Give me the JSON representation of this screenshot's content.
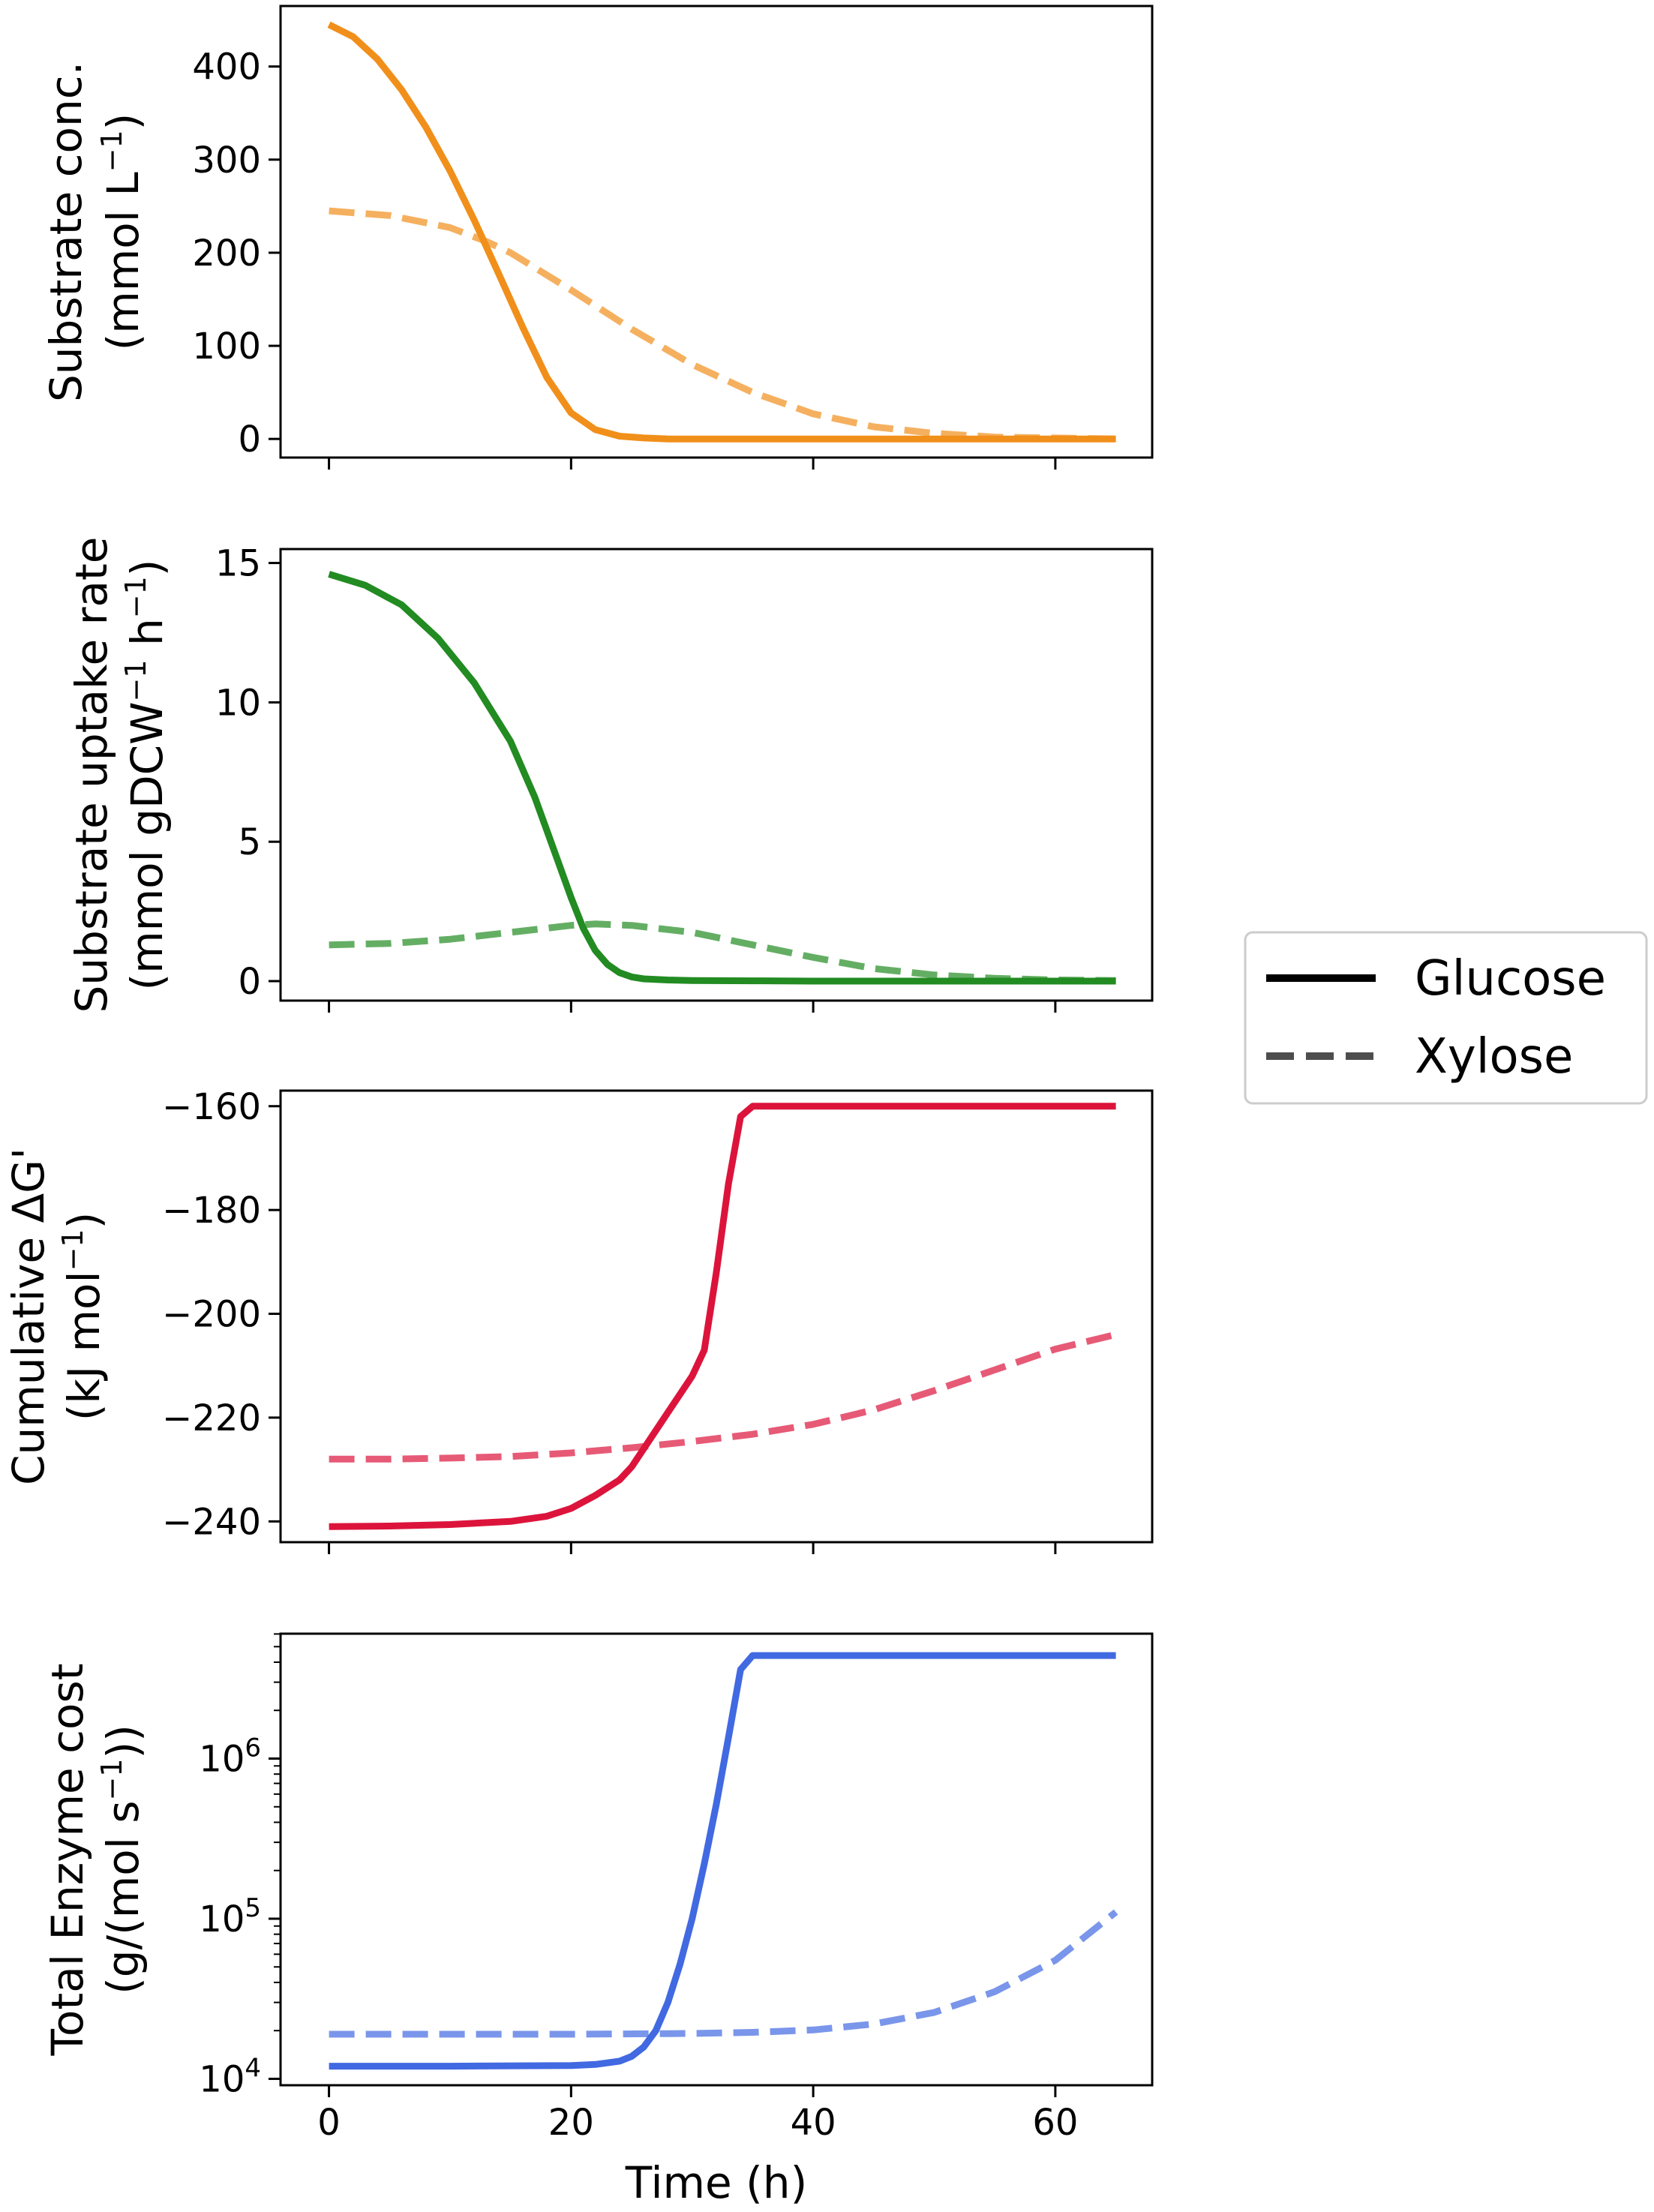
{
  "figure": {
    "x_label": "Time (h)",
    "legend": {
      "placement": "right-center",
      "entries": [
        {
          "label": "Glucose",
          "style": "solid",
          "color": "#000000"
        },
        {
          "label": "Xylose",
          "style": "dashed",
          "color": "#4d4d4d"
        }
      ]
    }
  },
  "chart_data": [
    {
      "type": "line",
      "ylabel_line1": "Substrate conc.",
      "ylabel_line2_main": "(mmol L",
      "ylabel_line2_sup": "−1",
      "ylabel_line2_end": ")",
      "xlim": [
        -4,
        68
      ],
      "ylim": [
        -20,
        465
      ],
      "yscale": "linear",
      "x_ticks": [
        0,
        20,
        40,
        60
      ],
      "y_ticks": [
        0,
        100,
        200,
        300,
        400
      ],
      "color": "#f18f1b",
      "series": [
        {
          "name": "Glucose",
          "style": "solid",
          "x": [
            0,
            2,
            4,
            6,
            8,
            10,
            12,
            14,
            16,
            18,
            20,
            22,
            24,
            26,
            28,
            30,
            35,
            40,
            45,
            50,
            55,
            60,
            65
          ],
          "y": [
            445,
            432,
            408,
            375,
            335,
            288,
            235,
            178,
            120,
            66,
            28,
            10,
            3,
            1,
            0,
            0,
            0,
            0,
            0,
            0,
            0,
            0,
            0
          ]
        },
        {
          "name": "Xylose",
          "style": "dashed",
          "x": [
            0,
            5,
            10,
            13,
            15,
            20,
            25,
            30,
            35,
            40,
            45,
            50,
            55,
            60,
            65
          ],
          "y": [
            245,
            240,
            227,
            212,
            200,
            160,
            118,
            80,
            50,
            27,
            13,
            6,
            2,
            1,
            0
          ]
        }
      ]
    },
    {
      "type": "line",
      "ylabel_line1": "Substrate uptake rate",
      "ylabel_line2_main": "(mmol gDCW",
      "ylabel_line2_sup": "−1",
      "ylabel_line2_mid": " h",
      "ylabel_line2_sup2": "−1",
      "ylabel_line2_end": ")",
      "xlim": [
        -4,
        68
      ],
      "ylim": [
        -0.7,
        15.5
      ],
      "yscale": "linear",
      "x_ticks": [
        0,
        20,
        40,
        60
      ],
      "y_ticks": [
        0,
        5,
        10,
        15
      ],
      "color": "#228b22",
      "series": [
        {
          "name": "Glucose",
          "style": "solid",
          "x": [
            0,
            3,
            6,
            9,
            12,
            15,
            17,
            18,
            19,
            20,
            21,
            22,
            23,
            24,
            25,
            26,
            28,
            30,
            35,
            40,
            45,
            50,
            55,
            60,
            65
          ],
          "y": [
            14.6,
            14.2,
            13.5,
            12.3,
            10.7,
            8.6,
            6.6,
            5.4,
            4.2,
            3.0,
            1.9,
            1.1,
            0.6,
            0.3,
            0.15,
            0.08,
            0.04,
            0.02,
            0.01,
            0,
            0,
            0,
            0,
            0,
            0
          ]
        },
        {
          "name": "Xylose",
          "style": "dashed",
          "x": [
            0,
            5,
            10,
            15,
            20,
            22,
            25,
            30,
            35,
            40,
            45,
            50,
            55,
            60,
            65
          ],
          "y": [
            1.3,
            1.35,
            1.5,
            1.75,
            2.0,
            2.05,
            2.0,
            1.75,
            1.3,
            0.85,
            0.45,
            0.22,
            0.1,
            0.04,
            0.02
          ]
        }
      ]
    },
    {
      "type": "line",
      "ylabel_line1": "Cumulative ΔG'",
      "ylabel_line2_main": "(kJ mol",
      "ylabel_line2_sup": "−1",
      "ylabel_line2_end": ")",
      "xlim": [
        -4,
        68
      ],
      "ylim": [
        -244,
        -157
      ],
      "yscale": "linear",
      "x_ticks": [
        0,
        20,
        40,
        60
      ],
      "y_ticks": [
        -160,
        -180,
        -200,
        -220,
        -240
      ],
      "y_tick_labels": [
        "−160",
        "−180",
        "−200",
        "−220",
        "−240"
      ],
      "color": "#dc143c",
      "series": [
        {
          "name": "Glucose",
          "style": "solid",
          "x": [
            0,
            5,
            10,
            15,
            18,
            20,
            22,
            24,
            25,
            26,
            28,
            30,
            31,
            32,
            33,
            34,
            35,
            40,
            45,
            50,
            55,
            60,
            65
          ],
          "y": [
            -241,
            -240.9,
            -240.6,
            -240,
            -239,
            -237.5,
            -235,
            -232,
            -229.5,
            -226,
            -219,
            -212,
            -207,
            -192,
            -175,
            -162,
            -160,
            -160,
            -160,
            -160,
            -160,
            -160,
            -160
          ]
        },
        {
          "name": "Xylose",
          "style": "dashed",
          "x": [
            0,
            5,
            10,
            15,
            20,
            25,
            30,
            35,
            40,
            45,
            50,
            55,
            60,
            65
          ],
          "y": [
            -228,
            -228,
            -227.8,
            -227.5,
            -226.8,
            -225.8,
            -224.6,
            -223.2,
            -221.3,
            -218.5,
            -214.8,
            -210.8,
            -206.8,
            -204
          ]
        }
      ]
    },
    {
      "type": "line",
      "ylabel_line1": "Total Enzyme cost",
      "ylabel_line2_main": "(g/(mol s",
      "ylabel_line2_sup": "−1",
      "ylabel_line2_end": "))",
      "xlim": [
        -4,
        68
      ],
      "ylim_log10": [
        3.96,
        6.78
      ],
      "yscale": "log",
      "x_ticks": [
        0,
        20,
        40,
        60
      ],
      "y_ticks_log10": [
        4,
        5,
        6
      ],
      "y_tick_base": "10",
      "y_tick_exponents": [
        "4",
        "5",
        "6"
      ],
      "color": "#4169e1",
      "series": [
        {
          "name": "Glucose",
          "style": "solid",
          "x": [
            0,
            10,
            20,
            22,
            24,
            25,
            26,
            27,
            28,
            29,
            30,
            31,
            32,
            33,
            34,
            35,
            40,
            45,
            50,
            55,
            60,
            65
          ],
          "y": [
            12000,
            12000,
            12100,
            12300,
            12900,
            13800,
            15800,
            20000,
            30000,
            52000,
            100000,
            220000,
            520000,
            1350000,
            3600000,
            4400000,
            4400000,
            4400000,
            4400000,
            4400000,
            4400000,
            4400000
          ]
        },
        {
          "name": "Xylose",
          "style": "dashed",
          "x": [
            0,
            10,
            20,
            30,
            35,
            40,
            45,
            50,
            55,
            60,
            65
          ],
          "y": [
            19000,
            19000,
            19000,
            19200,
            19500,
            20200,
            22000,
            26000,
            35000,
            55000,
            110000
          ]
        }
      ]
    }
  ]
}
